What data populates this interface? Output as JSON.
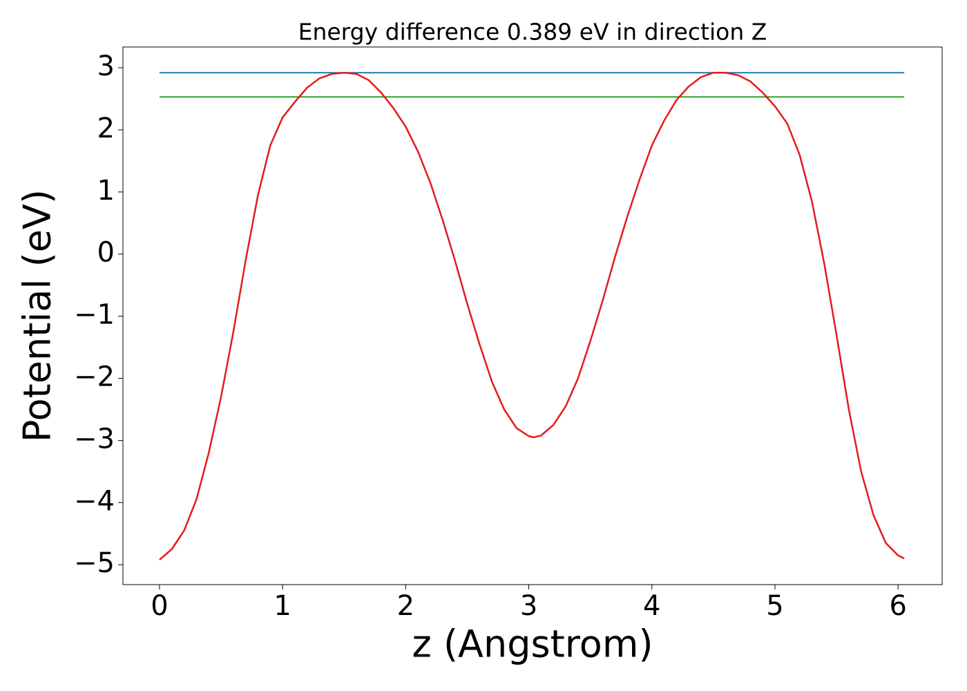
{
  "chart_data": {
    "type": "line",
    "title": "Energy difference 0.389 eV in direction Z",
    "x_label": "z (Angstrom)",
    "y_label": "Potential (eV)",
    "xlim": [
      -0.297,
      6.358
    ],
    "ylim": [
      -5.32,
      3.334
    ],
    "xticks": [
      0,
      1,
      2,
      3,
      4,
      5,
      6
    ],
    "yticks": [
      {
        "value": -5,
        "label": "−5"
      },
      {
        "value": -4,
        "label": "−4"
      },
      {
        "value": -3,
        "label": "−3"
      },
      {
        "value": -2,
        "label": "−2"
      },
      {
        "value": -1,
        "label": "−1"
      },
      0,
      1,
      2,
      3
    ],
    "series": [
      {
        "color": "#1f77b4",
        "x": [
          0,
          6.05
        ],
        "values": [
          2.92,
          2.92
        ]
      },
      {
        "color": "#2ca02c",
        "x": [
          0,
          6.05
        ],
        "values": [
          2.53,
          2.53
        ]
      },
      {
        "color": "#e41a1c",
        "x": [
          0,
          0.1,
          0.2,
          0.3,
          0.4,
          0.5,
          0.6,
          0.7,
          0.8,
          0.9,
          1.0,
          1.1,
          1.2,
          1.3,
          1.4,
          1.5,
          1.6,
          1.7,
          1.8,
          1.9,
          2.0,
          2.1,
          2.2,
          2.3,
          2.4,
          2.5,
          2.6,
          2.7,
          2.8,
          2.9,
          3.0,
          3.04,
          3.1,
          3.2,
          3.3,
          3.4,
          3.5,
          3.6,
          3.7,
          3.8,
          3.9,
          4.0,
          4.1,
          4.2,
          4.3,
          4.4,
          4.5,
          4.6,
          4.7,
          4.8,
          4.9,
          5.0,
          5.1,
          5.2,
          5.3,
          5.4,
          5.5,
          5.6,
          5.7,
          5.8,
          5.9,
          6.0,
          6.05
        ],
        "values": [
          -4.92,
          -4.75,
          -4.45,
          -3.95,
          -3.2,
          -2.3,
          -1.25,
          -0.1,
          0.95,
          1.75,
          2.2,
          2.45,
          2.68,
          2.83,
          2.9,
          2.92,
          2.9,
          2.8,
          2.6,
          2.35,
          2.05,
          1.65,
          1.15,
          0.55,
          -0.1,
          -0.8,
          -1.45,
          -2.05,
          -2.5,
          -2.8,
          -2.93,
          -2.95,
          -2.92,
          -2.75,
          -2.45,
          -2.0,
          -1.4,
          -0.75,
          -0.05,
          0.6,
          1.2,
          1.75,
          2.15,
          2.48,
          2.7,
          2.85,
          2.92,
          2.92,
          2.88,
          2.78,
          2.6,
          2.38,
          2.1,
          1.6,
          0.85,
          -0.15,
          -1.3,
          -2.5,
          -3.5,
          -4.2,
          -4.65,
          -4.85,
          -4.9
        ]
      }
    ]
  }
}
